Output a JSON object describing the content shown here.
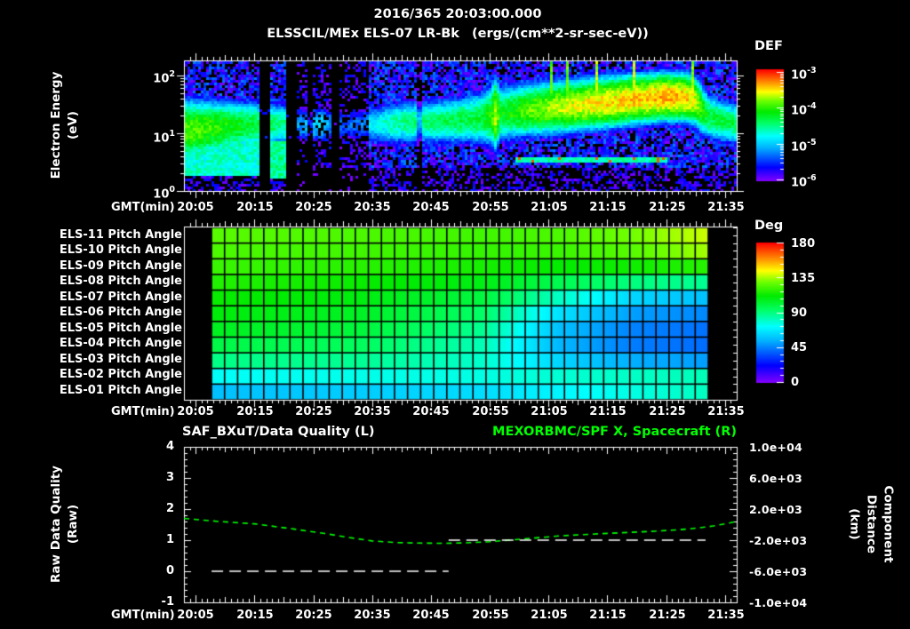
{
  "header": {
    "title_date": "2016/365 20:03:00.000",
    "title_instrument": "ELSSCIL/MEx ELS-07 LR-Bk",
    "title_units": "(ergs/(cm**2-sr-sec-eV))"
  },
  "axes": {
    "gmt_label": "GMT(min)",
    "time_labels": [
      "20:05",
      "20:15",
      "20:25",
      "20:35",
      "20:45",
      "20:55",
      "21:05",
      "21:15",
      "21:25",
      "21:35"
    ]
  },
  "spectro_panel": {
    "ylabel": "Electron Energy\n(eV)",
    "ytick_base": "10",
    "ytick_exponents": [
      "2",
      "1",
      "0"
    ],
    "colorbar_title": "DEF",
    "cbar_base": "10",
    "cbar_exponents": [
      "-3",
      "-4",
      "-5",
      "-6"
    ]
  },
  "pitch_panel": {
    "row_labels": [
      "ELS-11 Pitch Angle",
      "ELS-10 Pitch Angle",
      "ELS-09 Pitch Angle",
      "ELS-08 Pitch Angle",
      "ELS-07 Pitch Angle",
      "ELS-06 Pitch Angle",
      "ELS-05 Pitch Angle",
      "ELS-04 Pitch Angle",
      "ELS-03 Pitch Angle",
      "ELS-02 Pitch Angle",
      "ELS-01 Pitch Angle"
    ],
    "colorbar_title": "Deg",
    "colorbar_ticks": [
      "180",
      "135",
      "90",
      "45",
      "0"
    ]
  },
  "quality_panel": {
    "title_left": "SAF_BXuT/Data Quality (L)",
    "title_right": "MEXORBMC/SPF X, Spacecraft (R)",
    "ylabel_left": "Raw Data Quality\n(Raw)",
    "ylabel_right": "Component Distance\n(km)",
    "left_ticks": [
      "4",
      "3",
      "2",
      "1",
      "0",
      "-1"
    ],
    "right_ticks": [
      "1.0e+04",
      "6.0e+03",
      "2.0e+03",
      "-2.0e+03",
      "-6.0e+03",
      "-1.0e+04"
    ]
  },
  "colors": {
    "background": "#000000",
    "text": "#ffffff",
    "accent_green": "#00ff00"
  },
  "chart_data": [
    {
      "type": "heatmap",
      "name": "electron-energy-spectrogram",
      "title": "ELSSCIL/MEx ELS-07 LR-Bk electron energy flux",
      "x_axis": "GMT from 20:03 to 21:37, tick labels every 10 min",
      "y_axis": "Electron Energy (eV), log scale 1 to ~180 eV",
      "color_scale": {
        "label": "DEF (ergs/(cm**2-sr-sec-eV))",
        "log10_min": -6,
        "log10_max": -3
      },
      "spectrogram": {
        "t_minutes_after_2003": [
          0,
          4,
          8,
          12,
          13,
          14.5,
          16.5,
          17.5,
          19,
          21,
          23,
          25,
          27,
          29,
          31,
          33,
          35,
          38,
          41,
          44,
          47,
          50,
          52,
          52.8,
          53.6,
          55,
          58,
          62,
          66,
          70,
          74,
          78,
          82,
          85,
          86.5,
          87.6,
          89,
          91,
          94
        ],
        "band_peak_log10": [
          -3.9,
          -4.0,
          -4.15,
          -4.3,
          -4.5,
          -4.4,
          -4.5,
          -4.6,
          -4.9,
          -4.7,
          -4.6,
          -4.9,
          -5.1,
          -5.0,
          -4.9,
          -4.8,
          -4.6,
          -4.5,
          -4.45,
          -4.4,
          -4.35,
          -4.3,
          -4.1,
          -3.65,
          -4.2,
          -4.15,
          -3.95,
          -3.8,
          -3.65,
          -3.55,
          -3.5,
          -3.45,
          -3.4,
          -3.45,
          -3.6,
          -3.95,
          -4.3,
          -4.3,
          -4.35
        ],
        "band_center_logE": [
          1.05,
          1.08,
          1.12,
          1.14,
          1.15,
          1.15,
          1.15,
          1.15,
          1.15,
          1.15,
          1.15,
          1.15,
          1.15,
          1.15,
          1.15,
          1.16,
          1.17,
          1.19,
          1.2,
          1.21,
          1.23,
          1.26,
          1.3,
          1.34,
          1.34,
          1.36,
          1.4,
          1.44,
          1.48,
          1.52,
          1.56,
          1.6,
          1.63,
          1.62,
          1.58,
          1.45,
          1.3,
          1.22,
          1.16
        ],
        "band_width_logE": [
          0.5,
          0.46,
          0.43,
          0.4,
          0.38,
          0.38,
          0.37,
          0.36,
          0.35,
          0.35,
          0.35,
          0.34,
          0.34,
          0.34,
          0.35,
          0.36,
          0.37,
          0.38,
          0.38,
          0.39,
          0.4,
          0.44,
          0.5,
          0.56,
          0.46,
          0.44,
          0.43,
          0.42,
          0.41,
          0.4,
          0.39,
          0.38,
          0.37,
          0.37,
          0.38,
          0.4,
          0.38,
          0.36,
          0.35
        ],
        "background_log10": -5.75,
        "low_energy_blobs": [
          {
            "t": [
              0,
              12.6
            ],
            "logE": [
              0.25,
              0.95
            ],
            "v": -4.7
          },
          {
            "t": [
              14.3,
              17.2
            ],
            "logE": [
              0.2,
              0.85
            ],
            "v": -4.55
          }
        ],
        "black_gaps_t": [
          [
            12.6,
            14.3
          ],
          [
            17.2,
            18.9
          ],
          [
            24.7,
            26.4
          ]
        ],
        "dark_noisy_t": [
          19,
          31
        ],
        "dim_columns_t": [
          [
            21.0,
            21.8
          ],
          [
            39.3,
            40.1
          ]
        ],
        "thin_line": {
          "t": [
            56,
            82
          ],
          "logE": 0.52,
          "v": -4.6
        }
      }
    },
    {
      "type": "heatmap",
      "name": "pitch-angle-grid",
      "rows_top_to_bottom": [
        "ELS-11",
        "ELS-10",
        "ELS-09",
        "ELS-08",
        "ELS-07",
        "ELS-06",
        "ELS-05",
        "ELS-04",
        "ELS-03",
        "ELS-02",
        "ELS-01"
      ],
      "color_scale": {
        "label": "Deg",
        "min": 0,
        "max": 180
      },
      "t_range_minutes_after_2003": [
        4.7,
        89
      ],
      "n_time_cells": 38,
      "anchors_frac": [
        0,
        0.3,
        0.55,
        0.7,
        0.85,
        1
      ],
      "values_deg_top_to_bottom": [
        [
          126,
          124,
          122,
          124,
          130,
          139
        ],
        [
          124,
          122,
          120,
          121,
          126,
          135
        ],
        [
          121,
          118,
          115,
          112,
          114,
          118
        ],
        [
          117,
          113,
          108,
          97,
          90,
          87
        ],
        [
          113,
          109,
          100,
          80,
          62,
          57
        ],
        [
          110,
          105,
          93,
          65,
          50,
          46
        ],
        [
          106,
          101,
          87,
          57,
          45,
          42
        ],
        [
          99,
          95,
          82,
          55,
          44,
          41
        ],
        [
          89,
          87,
          79,
          62,
          53,
          50
        ],
        [
          73,
          75,
          76,
          78,
          80,
          82
        ],
        [
          57,
          60,
          64,
          70,
          76,
          81
        ]
      ]
    },
    {
      "type": "line",
      "name": "data-quality-and-spacecraft-distance",
      "x_range_minutes_after_2003": [
        0,
        94
      ],
      "left_ylim": [
        -1,
        4
      ],
      "right_ylim": [
        -10000,
        10000
      ],
      "series": [
        {
          "name": "MEXORBMC/SPF X, Spacecraft",
          "axis": "right",
          "style": "dashed",
          "color": "#00ff00",
          "points_min_km": [
            [
              0,
              800
            ],
            [
              6,
              400
            ],
            [
              12,
              100
            ],
            [
              18,
              -500
            ],
            [
              24,
              -1150
            ],
            [
              28,
              -1650
            ],
            [
              32,
              -2100
            ],
            [
              36,
              -2300
            ],
            [
              40,
              -2380
            ],
            [
              44,
              -2400
            ],
            [
              48,
              -2350
            ],
            [
              52,
              -2200
            ],
            [
              56,
              -1950
            ],
            [
              60,
              -1700
            ],
            [
              64,
              -1450
            ],
            [
              68,
              -1280
            ],
            [
              72,
              -1130
            ],
            [
              76,
              -990
            ],
            [
              80,
              -850
            ],
            [
              83,
              -720
            ],
            [
              86,
              -550
            ],
            [
              88,
              -380
            ],
            [
              90,
              -180
            ],
            [
              92,
              100
            ],
            [
              94,
              400
            ]
          ]
        },
        {
          "name": "SAF_BXuT/Data Quality",
          "axis": "left",
          "style": "dashed",
          "color": "#ffffff",
          "segments": [
            {
              "t_min": [
                4.7,
                45.0
              ],
              "value": 0
            },
            {
              "t_min": [
                45.0,
                88.7
              ],
              "value": 1
            }
          ]
        }
      ]
    }
  ]
}
